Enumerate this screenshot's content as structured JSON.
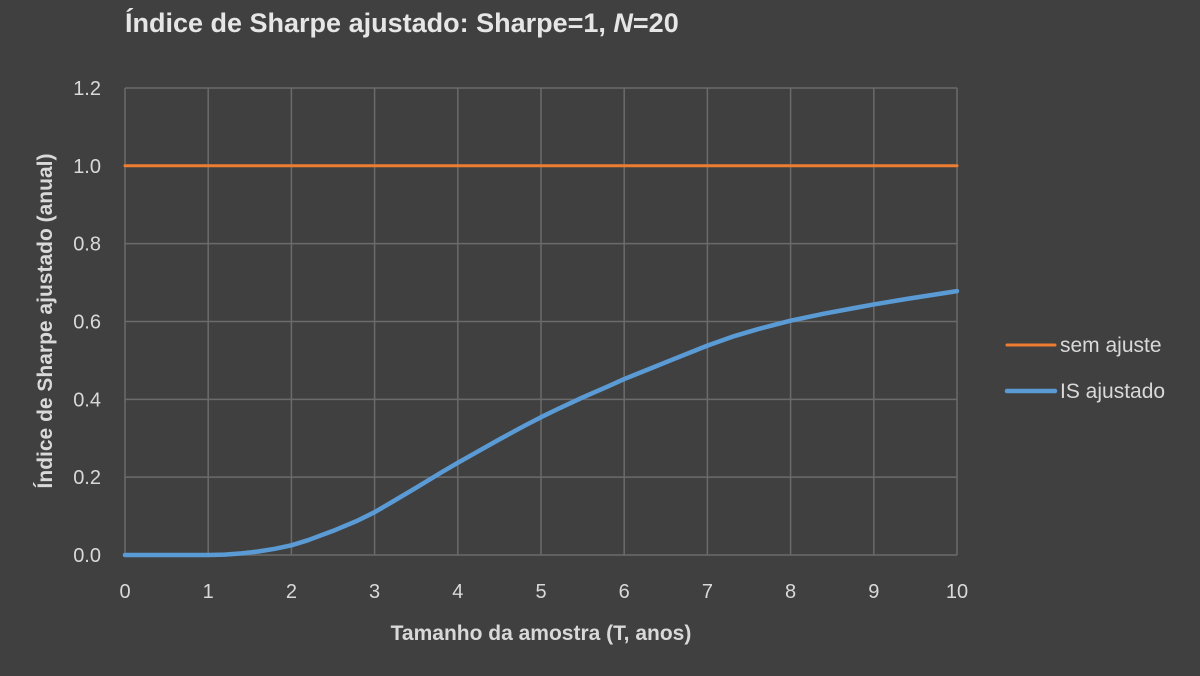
{
  "chart_data": {
    "type": "line",
    "title_main": "Índice de Sharpe ajustado:  Sharpe=1, ",
    "title_italic": "N",
    "title_tail": "=20",
    "xlabel": "Tamanho da amostra (T, anos)",
    "ylabel": "Índice de Sharpe ajustado (anual)",
    "xlim": [
      0,
      10
    ],
    "ylim": [
      0,
      1.2
    ],
    "x_ticks": [
      "0",
      "1",
      "2",
      "3",
      "4",
      "5",
      "6",
      "7",
      "8",
      "9",
      "10"
    ],
    "y_ticks": [
      "0.0",
      "0.2",
      "0.4",
      "0.6",
      "0.8",
      "1.0",
      "1.2"
    ],
    "grid": true,
    "legend_position": "right",
    "series": [
      {
        "name": "sem ajuste",
        "color": "#ed7d31",
        "x": [
          0,
          10
        ],
        "y": [
          1.0,
          1.0
        ]
      },
      {
        "name": "IS ajustado",
        "color": "#5b9bd5",
        "x": [
          0,
          0.5,
          1.0,
          1.2,
          1.4,
          1.6,
          1.8,
          2.0,
          2.2,
          2.5,
          2.8,
          3.0,
          3.2,
          3.5,
          3.8,
          4.0,
          4.2,
          4.5,
          4.8,
          5.0,
          5.2,
          5.5,
          5.8,
          6.0,
          6.3,
          6.6,
          7.0,
          7.3,
          7.6,
          8.0,
          8.4,
          8.8,
          9.0,
          9.4,
          9.7,
          10.0
        ],
        "y": [
          0.0,
          0.0,
          0.0,
          0.001,
          0.004,
          0.009,
          0.016,
          0.025,
          0.038,
          0.062,
          0.089,
          0.11,
          0.135,
          0.173,
          0.212,
          0.237,
          0.261,
          0.297,
          0.332,
          0.354,
          0.375,
          0.405,
          0.433,
          0.452,
          0.478,
          0.504,
          0.538,
          0.561,
          0.58,
          0.602,
          0.62,
          0.636,
          0.644,
          0.658,
          0.668,
          0.678
        ]
      }
    ]
  }
}
